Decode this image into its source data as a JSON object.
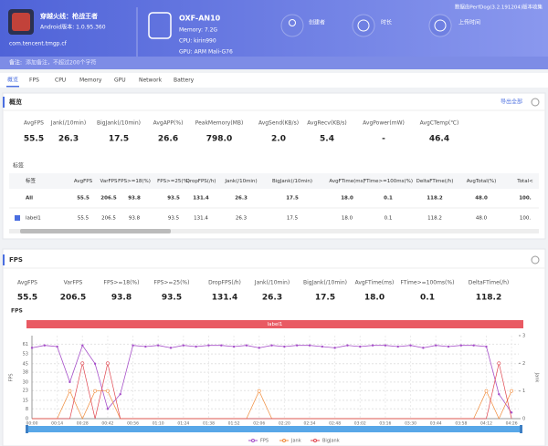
{
  "header": {
    "app_name": "穿越火线：枪战王者",
    "android_version": "Android版本: 1.0.95.360",
    "package": "com.tencent.tmgp.cf",
    "device": "OXF-AN10",
    "memory": "Memory: 7.2G",
    "cpu": "CPU: kirin990",
    "gpu": "GPU: ARM Mali-G76",
    "creator": "创建者",
    "duration": "时长",
    "upload_time": "上传时间",
    "collected_by": "数据由PerfDog(3.2.191204)版本收集"
  },
  "notes": {
    "label": "备注:",
    "placeholder": "添加备注，不超过200个字符"
  },
  "tabs": [
    "概览",
    "FPS",
    "CPU",
    "Memory",
    "GPU",
    "Network",
    "Battery"
  ],
  "overview": {
    "title": "概览",
    "export": "导出全部",
    "stats": [
      {
        "label": "AvgFPS",
        "value": "55.5"
      },
      {
        "label": "Jank(/10min)",
        "value": "26.3"
      },
      {
        "label": "BigJank(/10min)",
        "value": "17.5"
      },
      {
        "label": "AvgAPP(%)",
        "value": "26.6"
      },
      {
        "label": "PeakMemory(MB)",
        "value": "798.0"
      },
      {
        "label": "AvgSend(KB/s)",
        "value": "2.0"
      },
      {
        "label": "AvgRecv(KB/s)",
        "value": "5.4"
      },
      {
        "label": "AvgPower(mW)",
        "value": "-"
      },
      {
        "label": "AvgCTemp(℃)",
        "value": "46.4"
      }
    ],
    "table": {
      "title": "标签",
      "columns": [
        "标签",
        "AvgFPS",
        "VarFPS",
        "FPS>=18(%)",
        "FPS>=25(%)",
        "DropFPS(/h)",
        "Jank(/10min)",
        "BigJank(/10min)",
        "AvgFTime(ms)",
        "FTime>=100ms(%)",
        "DeltaFTime(/h)",
        "AvgTotal(%)",
        "Total<"
      ],
      "rows": [
        [
          "All",
          "55.5",
          "206.5",
          "93.8",
          "93.5",
          "131.4",
          "26.3",
          "17.5",
          "18.0",
          "0.1",
          "118.2",
          "48.0",
          "100."
        ],
        [
          "label1",
          "55.5",
          "206.5",
          "93.8",
          "93.5",
          "131.4",
          "26.3",
          "17.5",
          "18.0",
          "0.1",
          "118.2",
          "48.0",
          "100."
        ]
      ]
    }
  },
  "fps_section": {
    "title": "FPS",
    "stats": [
      {
        "label": "AvgFPS",
        "value": "55.5"
      },
      {
        "label": "VarFPS",
        "value": "206.5"
      },
      {
        "label": "FPS>=18(%)",
        "value": "93.8"
      },
      {
        "label": "FPS>=25(%)",
        "value": "93.5"
      },
      {
        "label": "DropFPS(/h)",
        "value": "131.4"
      },
      {
        "label": "Jank(/10min)",
        "value": "26.3"
      },
      {
        "label": "BigJank(/10min)",
        "value": "17.5"
      },
      {
        "label": "AvgFTime(ms)",
        "value": "18.0"
      },
      {
        "label": "FTime>=100ms(%)",
        "value": "0.1"
      },
      {
        "label": "DeltaFTime(/h)",
        "value": "118.2"
      }
    ]
  },
  "chart_data": {
    "type": "line",
    "title": "FPS",
    "ylabel": "FPS",
    "y2label": "Jank",
    "band_label": "label1",
    "x": [
      0,
      7,
      14,
      21,
      28,
      35,
      42,
      49,
      56,
      63,
      70,
      77,
      84,
      91,
      98,
      105,
      112,
      119,
      126,
      133,
      140,
      147,
      154,
      161,
      168,
      175,
      182,
      189,
      196,
      203,
      210,
      217,
      224,
      231,
      238,
      245,
      252,
      259,
      266
    ],
    "series": [
      {
        "name": "FPS",
        "color": "#a64fc9",
        "axis": "y",
        "values": [
          58,
          60,
          59,
          30,
          60,
          45,
          8,
          20,
          60,
          59,
          60,
          58,
          60,
          59,
          60,
          60,
          59,
          60,
          58,
          60,
          59,
          60,
          60,
          59,
          58,
          60,
          59,
          60,
          60,
          59,
          60,
          58,
          60,
          59,
          60,
          60,
          59,
          20,
          5
        ]
      },
      {
        "name": "Jank",
        "color": "#f08c3c",
        "axis": "y2",
        "values": [
          0,
          0,
          0,
          1,
          0,
          1,
          1,
          0,
          0,
          0,
          0,
          0,
          0,
          0,
          0,
          0,
          0,
          0,
          1,
          0,
          0,
          0,
          0,
          0,
          0,
          0,
          0,
          0,
          0,
          0,
          0,
          0,
          0,
          0,
          0,
          0,
          1,
          0,
          1
        ]
      },
      {
        "name": "BigJank",
        "color": "#e0464f",
        "axis": "y2",
        "values": [
          0,
          0,
          0,
          0,
          2,
          0,
          2,
          0,
          0,
          0,
          0,
          0,
          0,
          0,
          0,
          0,
          0,
          0,
          0,
          0,
          0,
          0,
          0,
          0,
          0,
          0,
          0,
          0,
          0,
          0,
          0,
          0,
          0,
          0,
          0,
          0,
          0,
          2,
          0
        ]
      }
    ],
    "xlim": [
      0,
      270
    ],
    "xticks": [
      {
        "value": 0,
        "label": "00:00"
      },
      {
        "value": 14,
        "label": "00:14"
      },
      {
        "value": 28,
        "label": "00:28"
      },
      {
        "value": 42,
        "label": "00:42"
      },
      {
        "value": 56,
        "label": "00:56"
      },
      {
        "value": 70,
        "label": "01:10"
      },
      {
        "value": 84,
        "label": "01:24"
      },
      {
        "value": 98,
        "label": "01:38"
      },
      {
        "value": 112,
        "label": "01:52"
      },
      {
        "value": 126,
        "label": "02:06"
      },
      {
        "value": 140,
        "label": "02:20"
      },
      {
        "value": 154,
        "label": "02:34"
      },
      {
        "value": 168,
        "label": "02:48"
      },
      {
        "value": 182,
        "label": "03:02"
      },
      {
        "value": 196,
        "label": "03:16"
      },
      {
        "value": 210,
        "label": "03:30"
      },
      {
        "value": 224,
        "label": "03:44"
      },
      {
        "value": 238,
        "label": "03:58"
      },
      {
        "value": 252,
        "label": "04:12"
      },
      {
        "value": 266,
        "label": "04:26"
      }
    ],
    "ylim": [
      0,
      68
    ],
    "yticks": [
      0,
      8,
      15,
      23,
      30,
      38,
      45,
      53,
      61
    ],
    "y2lim": [
      0,
      3
    ],
    "y2ticks": [
      0,
      1,
      2,
      3
    ],
    "grid": true,
    "legend": "bottom"
  }
}
